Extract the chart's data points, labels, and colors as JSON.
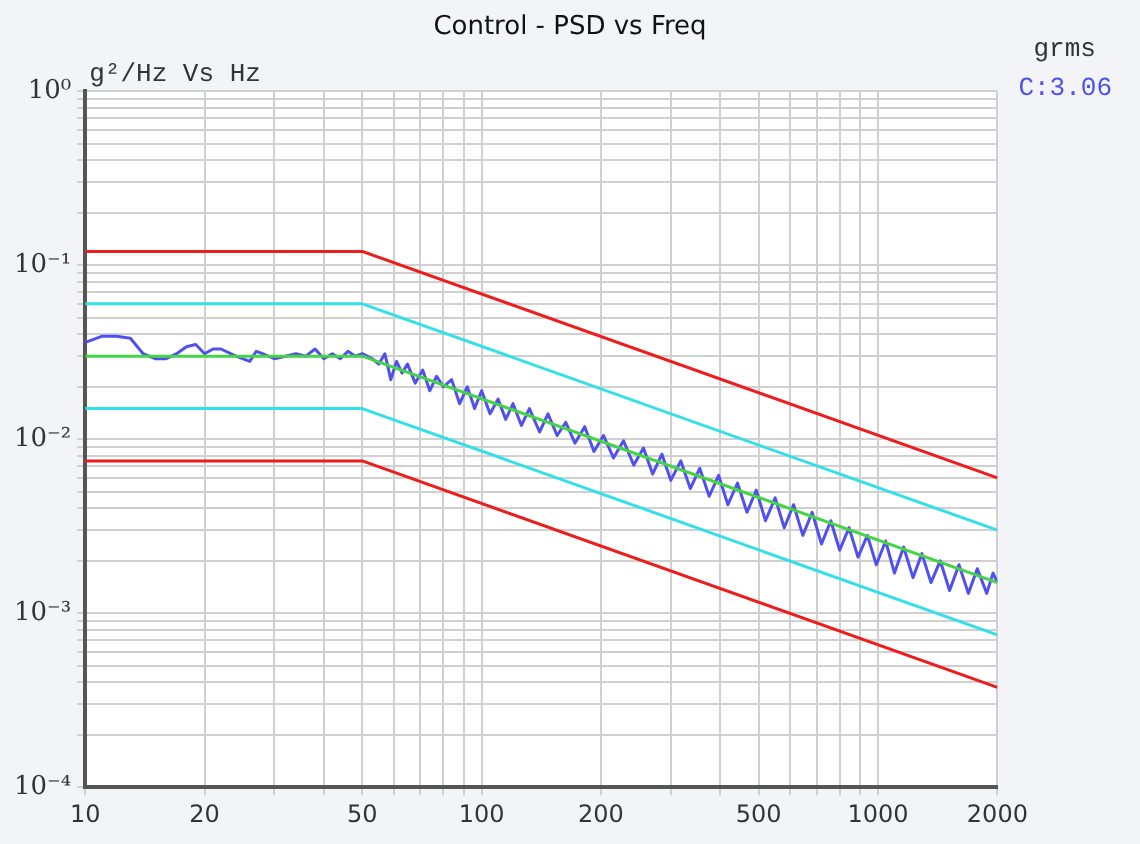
{
  "chart_data": {
    "type": "line",
    "title": "Control - PSD vs Freq",
    "ylabel": "g²/Hz Vs Hz",
    "legend_title": "grms",
    "legend": "top right",
    "log": "xy",
    "grid": true,
    "marker": "none",
    "line_style": "solid",
    "xlim": [
      10,
      2000
    ],
    "ylim": [
      0.0001,
      1
    ],
    "xticks": [
      10,
      20,
      {
        "value": 30,
        "label": null
      },
      {
        "value": 40,
        "label": null
      },
      50,
      {
        "value": 60,
        "label": null
      },
      {
        "value": 70,
        "label": null
      },
      {
        "value": 80,
        "label": null
      },
      {
        "value": 90,
        "label": null
      },
      100,
      200,
      {
        "value": 300,
        "label": null
      },
      {
        "value": 400,
        "label": null
      },
      500,
      {
        "value": 600,
        "label": null
      },
      {
        "value": 700,
        "label": null
      },
      {
        "value": 800,
        "label": null
      },
      {
        "value": 900,
        "label": null
      },
      1000,
      2000
    ],
    "yticks": [
      {
        "value": 0.0001,
        "label": "10⁻⁴"
      },
      {
        "value": 0.0002,
        "label": null
      },
      {
        "value": 0.0003,
        "label": null
      },
      {
        "value": 0.0004,
        "label": null
      },
      {
        "value": 0.0005,
        "label": null
      },
      {
        "value": 0.0006,
        "label": null
      },
      {
        "value": 0.0007,
        "label": null
      },
      {
        "value": 0.0008,
        "label": null
      },
      {
        "value": 0.0009,
        "label": null
      },
      {
        "value": 0.001,
        "label": "10⁻³"
      },
      {
        "value": 0.002,
        "label": null
      },
      {
        "value": 0.003,
        "label": null
      },
      {
        "value": 0.004,
        "label": null
      },
      {
        "value": 0.005,
        "label": null
      },
      {
        "value": 0.006,
        "label": null
      },
      {
        "value": 0.007,
        "label": null
      },
      {
        "value": 0.008,
        "label": null
      },
      {
        "value": 0.009,
        "label": null
      },
      {
        "value": 0.01,
        "label": "10⁻²"
      },
      {
        "value": 0.02,
        "label": null
      },
      {
        "value": 0.03,
        "label": null
      },
      {
        "value": 0.04,
        "label": null
      },
      {
        "value": 0.05,
        "label": null
      },
      {
        "value": 0.06,
        "label": null
      },
      {
        "value": 0.07,
        "label": null
      },
      {
        "value": 0.08,
        "label": null
      },
      {
        "value": 0.09,
        "label": null
      },
      {
        "value": 0.1,
        "label": "10⁻¹"
      },
      {
        "value": 0.2,
        "label": null
      },
      {
        "value": 0.3,
        "label": null
      },
      {
        "value": 0.4,
        "label": null
      },
      {
        "value": 0.5,
        "label": null
      },
      {
        "value": 0.6,
        "label": null
      },
      {
        "value": 0.7,
        "label": null
      },
      {
        "value": 0.8,
        "label": null
      },
      {
        "value": 0.9,
        "label": null
      },
      {
        "value": 1,
        "label": "10⁰"
      }
    ],
    "series": [
      {
        "color": "#ee1c1c",
        "x": [
          10,
          50,
          2000
        ],
        "values": [
          0.12,
          0.12,
          0.006
        ]
      },
      {
        "color": "#33e0e8",
        "x": [
          10,
          50,
          2000
        ],
        "values": [
          0.06,
          0.06,
          0.003
        ]
      },
      {
        "color": "#33e0e8",
        "x": [
          10,
          50,
          2000
        ],
        "values": [
          0.015,
          0.015,
          0.00075
        ]
      },
      {
        "color": "#ee1c1c",
        "x": [
          10,
          50,
          2000
        ],
        "values": [
          0.0075,
          0.0075,
          0.000375
        ]
      },
      {
        "color": "#44d444",
        "x": [
          10,
          50,
          2000
        ],
        "values": [
          0.03,
          0.03,
          0.0015
        ]
      },
      {
        "name": "C:3.06",
        "color": "#5050ee",
        "x": [
          10,
          11,
          12,
          13,
          14,
          15,
          16,
          17,
          18,
          19,
          20,
          21,
          22,
          24,
          26,
          27,
          28,
          30,
          32,
          34,
          36,
          38,
          40,
          42,
          44,
          46,
          48,
          50,
          53,
          55,
          57,
          59,
          61,
          63,
          65,
          68,
          71,
          74,
          77,
          80,
          84,
          88,
          92,
          96,
          100,
          105,
          110,
          115,
          120,
          126,
          132,
          140,
          147,
          155,
          163,
          172,
          182,
          192,
          203,
          215,
          228,
          242,
          256,
          270,
          285,
          300,
          318,
          336,
          355,
          375,
          396,
          418,
          442,
          467,
          493,
          520,
          550,
          580,
          612,
          646,
          682,
          720,
          760,
          800,
          845,
          890,
          940,
          990,
          1045,
          1100,
          1160,
          1225,
          1290,
          1360,
          1435,
          1515,
          1600,
          1690,
          1780,
          1880,
          1950,
          2000
        ],
        "values": [
          0.036,
          0.039,
          0.039,
          0.038,
          0.031,
          0.029,
          0.029,
          0.031,
          0.034,
          0.035,
          0.031,
          0.033,
          0.033,
          0.03,
          0.028,
          0.032,
          0.031,
          0.029,
          0.03,
          0.031,
          0.03,
          0.033,
          0.029,
          0.031,
          0.029,
          0.032,
          0.03,
          0.031,
          0.029,
          0.027,
          0.031,
          0.022,
          0.028,
          0.024,
          0.027,
          0.021,
          0.025,
          0.019,
          0.023,
          0.02,
          0.022,
          0.016,
          0.02,
          0.015,
          0.019,
          0.014,
          0.017,
          0.013,
          0.016,
          0.012,
          0.015,
          0.011,
          0.014,
          0.0105,
          0.0125,
          0.0095,
          0.0118,
          0.0085,
          0.0105,
          0.0078,
          0.0098,
          0.0071,
          0.0089,
          0.0063,
          0.0082,
          0.0058,
          0.0075,
          0.0052,
          0.0068,
          0.0047,
          0.0062,
          0.0042,
          0.0056,
          0.0038,
          0.0051,
          0.0034,
          0.0046,
          0.0031,
          0.0042,
          0.0028,
          0.0038,
          0.0025,
          0.0034,
          0.0023,
          0.0031,
          0.0021,
          0.0028,
          0.0019,
          0.0026,
          0.0017,
          0.0024,
          0.0016,
          0.0022,
          0.0015,
          0.002,
          0.00135,
          0.0019,
          0.0013,
          0.0018,
          0.0013,
          0.0017,
          0.0015
        ]
      }
    ]
  }
}
